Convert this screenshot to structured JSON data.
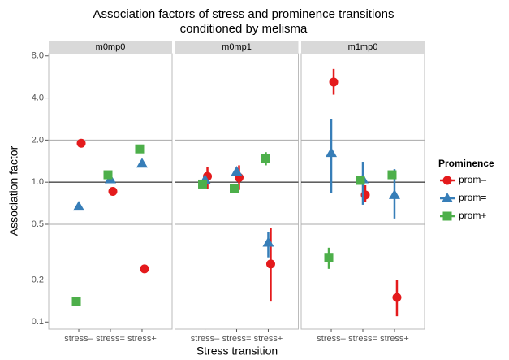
{
  "chart_data": {
    "type": "faceted_point",
    "title": [
      "Association factors of stress and prominence transitions",
      "conditioned by melisma"
    ],
    "x_label": "Stress transition",
    "y_label": "Association factor",
    "legend_title": "Prominence",
    "categories": [
      "stress–",
      "stress=",
      "stress+"
    ],
    "log_scale": true,
    "ylim": [
      0.089,
      8.3
    ],
    "yticks": [
      0.1,
      0.2,
      0.5,
      {
        "value": 1,
        "label": "1.0"
      },
      {
        "value": 2,
        "label": "2.0"
      },
      {
        "value": 4,
        "label": "4.0"
      },
      {
        "value": 8,
        "label": "8.0"
      }
    ],
    "grid_lines": [
      0.5,
      2
    ],
    "baseline": 1,
    "series": [
      {
        "name": "prom–",
        "color": "#e41a1c",
        "shape": "circle"
      },
      {
        "name": "prom=",
        "color": "#377eb8",
        "shape": "triangle"
      },
      {
        "name": "prom+",
        "color": "#4daf4a",
        "shape": "square"
      }
    ],
    "panels": [
      {
        "name": "m0mp0",
        "series": [
          {
            "values": [
              1.9,
              0.86,
              0.24
            ],
            "lower": [
              null,
              null,
              null
            ],
            "upper": [
              null,
              null,
              null
            ]
          },
          {
            "values": [
              0.67,
              1.05,
              1.36
            ],
            "lower": [
              null,
              null,
              null
            ],
            "upper": [
              null,
              null,
              null
            ]
          },
          {
            "values": [
              0.14,
              1.13,
              1.73
            ],
            "lower": [
              null,
              null,
              null
            ],
            "upper": [
              null,
              null,
              null
            ]
          }
        ]
      },
      {
        "name": "m0mp1",
        "series": [
          {
            "values": [
              1.1,
              1.08,
              0.26
            ],
            "lower": [
              0.9,
              0.88,
              0.14
            ],
            "upper": [
              1.29,
              1.32,
              0.47
            ]
          },
          {
            "values": [
              1.04,
              1.19,
              0.37
            ],
            "lower": [
              null,
              null,
              0.29
            ],
            "upper": [
              null,
              null,
              0.44
            ]
          },
          {
            "values": [
              0.97,
              0.9,
              1.47
            ],
            "lower": [
              null,
              null,
              1.32
            ],
            "upper": [
              null,
              null,
              1.64
            ]
          }
        ]
      },
      {
        "name": "m1mp0",
        "series": [
          {
            "values": [
              5.2,
              0.81,
              0.15
            ],
            "lower": [
              4.22,
              0.72,
              0.11
            ],
            "upper": [
              6.45,
              0.95,
              0.2
            ]
          },
          {
            "values": [
              1.62,
              1.05,
              0.81
            ],
            "lower": [
              0.84,
              0.69,
              0.55
            ],
            "upper": [
              2.83,
              1.4,
              1.24
            ]
          },
          {
            "values": [
              0.29,
              1.03,
              1.13
            ],
            "lower": [
              0.24,
              null,
              null
            ],
            "upper": [
              0.34,
              null,
              null
            ]
          }
        ]
      }
    ]
  }
}
